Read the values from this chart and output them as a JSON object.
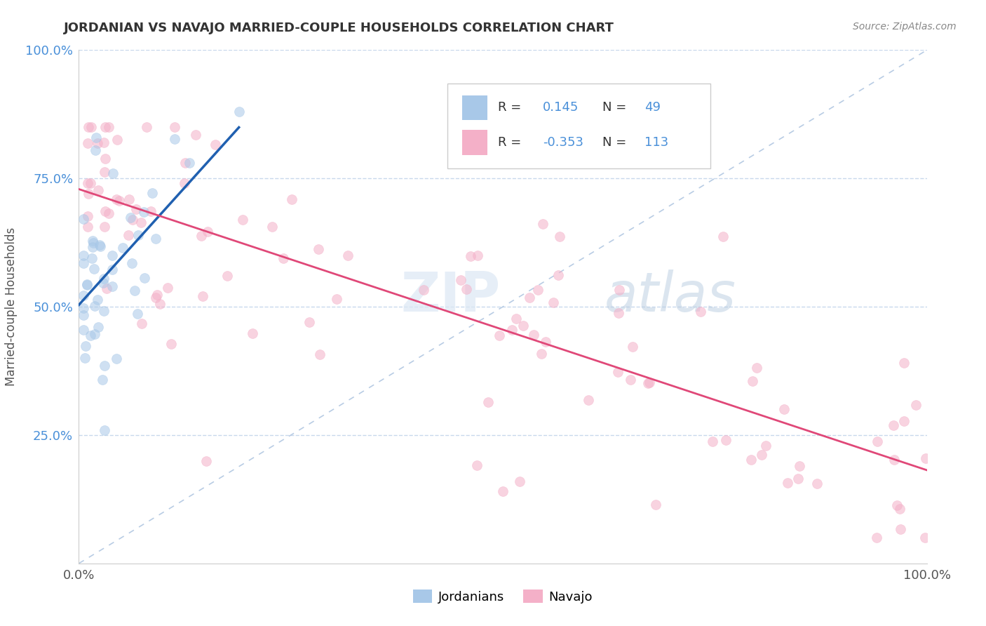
{
  "title": "JORDANIAN VS NAVAJO MARRIED-COUPLE HOUSEHOLDS CORRELATION CHART",
  "source": "Source: ZipAtlas.com",
  "ylabel": "Married-couple Households",
  "watermark_zip": "ZIP",
  "watermark_atlas": "atlas",
  "jordanian_R": 0.145,
  "jordanian_N": 49,
  "navajo_R": -0.353,
  "navajo_N": 113,
  "blue_scatter_color": "#a8c8e8",
  "pink_scatter_color": "#f4b0c8",
  "blue_trend_color": "#2060b0",
  "pink_trend_color": "#e04878",
  "diag_color": "#b8cce4",
  "grid_color": "#c8d8ec",
  "background_color": "#ffffff",
  "tick_color_y": "#4a90d9",
  "tick_color_x": "#555555",
  "title_color": "#333333",
  "source_color": "#888888",
  "ylabel_color": "#555555",
  "legend_R_color": "#333333",
  "legend_N_color": "#333333",
  "legend_val_color": "#4a90d9",
  "xlim": [
    0.0,
    1.0
  ],
  "ylim": [
    0.0,
    1.0
  ],
  "yticks": [
    0.25,
    0.5,
    0.75,
    1.0
  ],
  "ytick_labels": [
    "25.0%",
    "50.0%",
    "75.0%",
    "100.0%"
  ],
  "xticks": [
    0.0,
    1.0
  ],
  "xtick_labels": [
    "0.0%",
    "100.0%"
  ],
  "scatter_size": 100,
  "scatter_alpha": 0.55,
  "legend_box_color": "#ffffff",
  "legend_box_edge": "#cccccc"
}
